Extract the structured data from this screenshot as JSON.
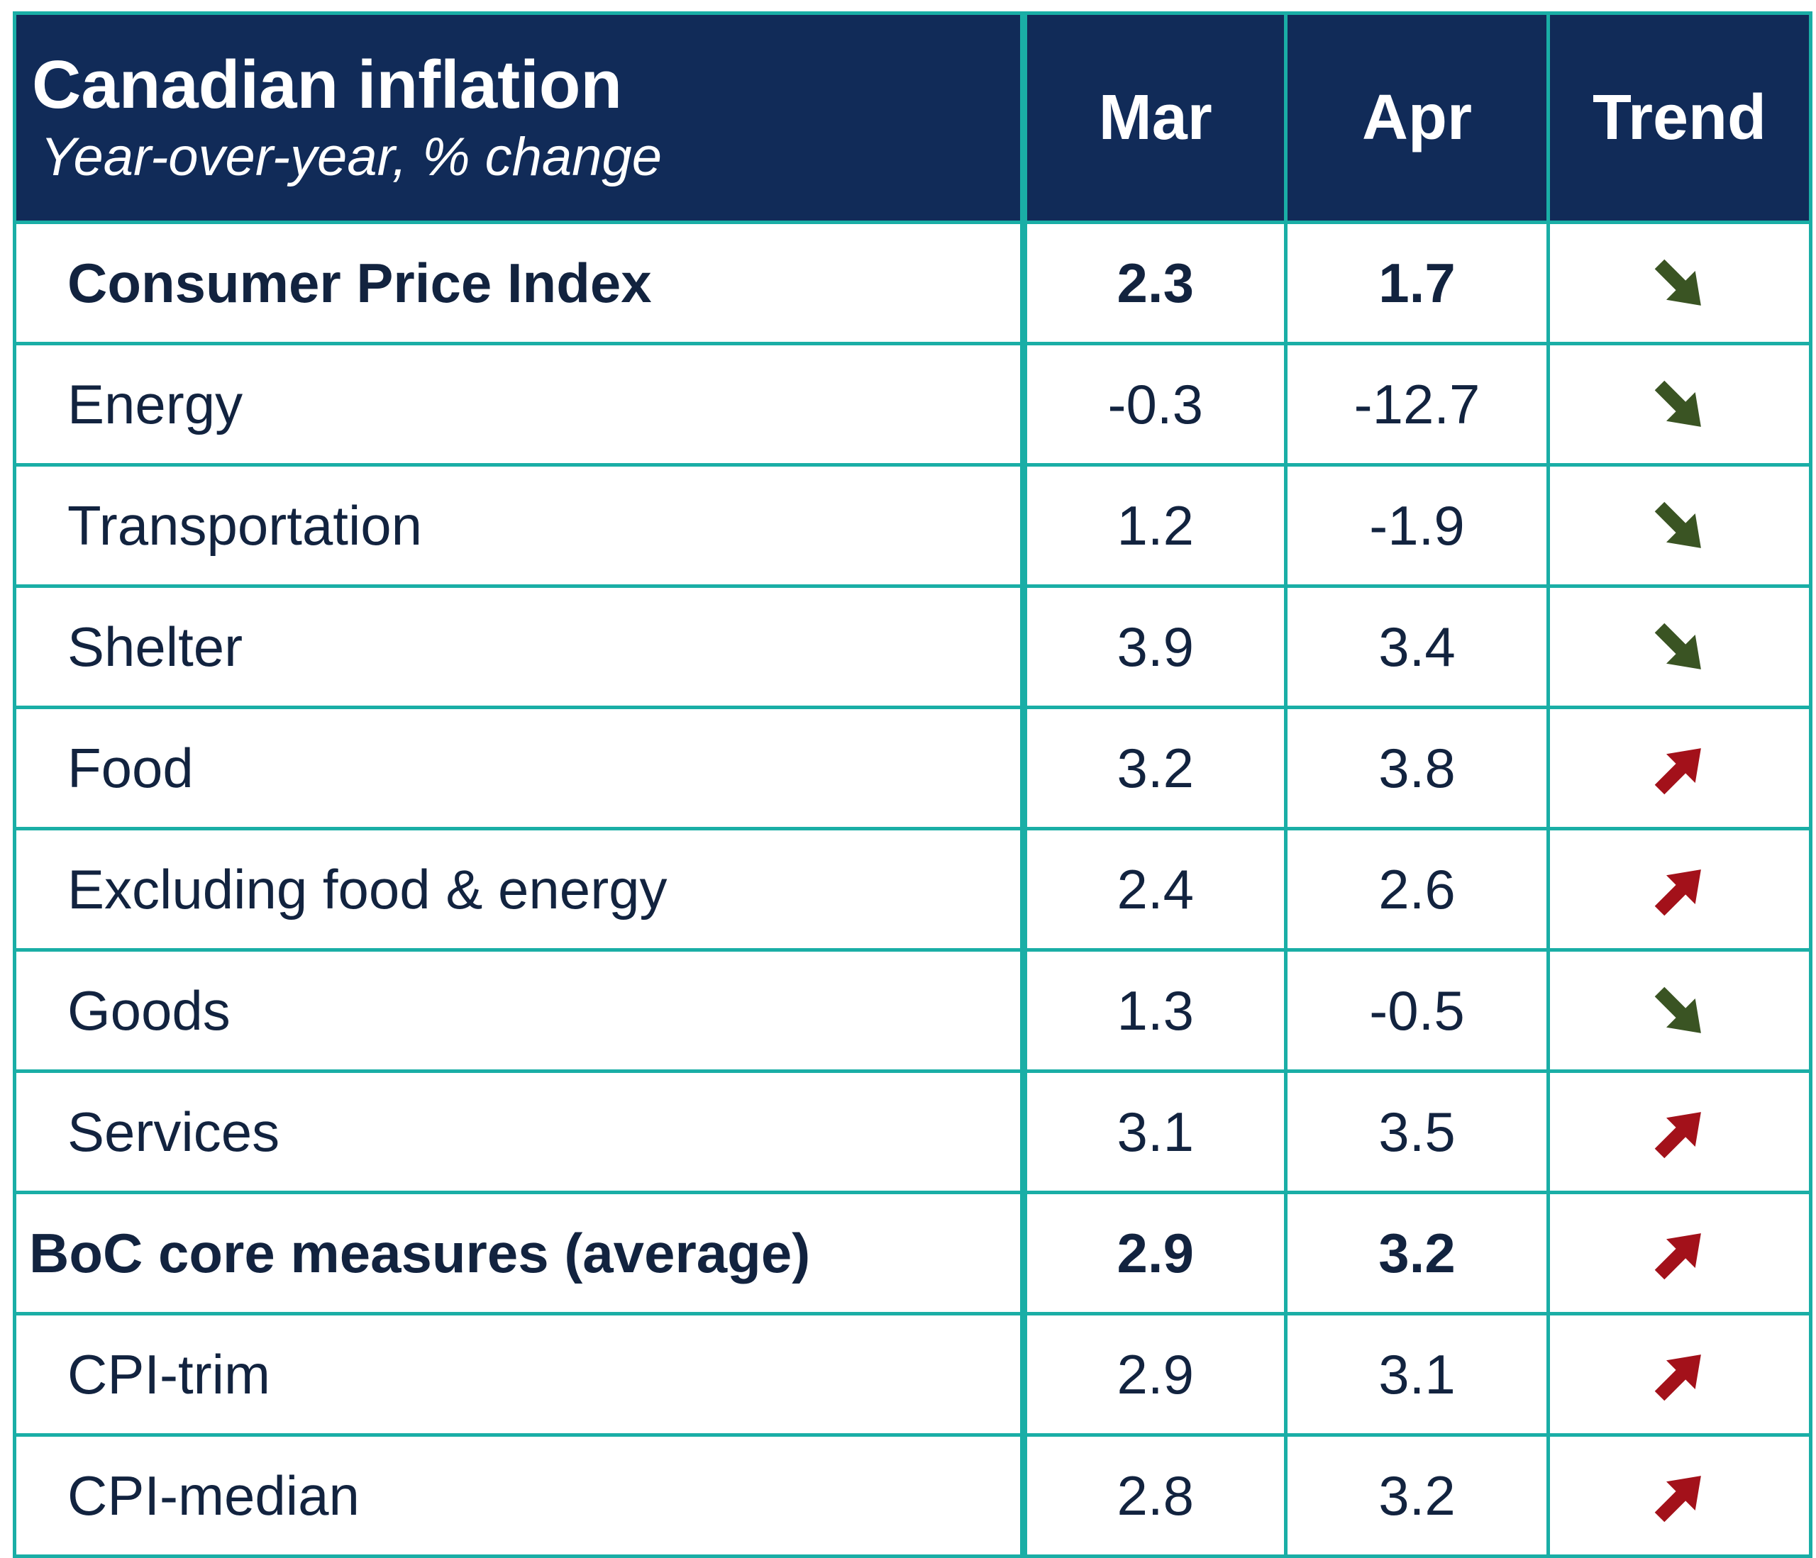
{
  "chart_data": {
    "type": "table",
    "title": "Canadian inflation",
    "subtitle": "Year-over-year, % change",
    "columns": [
      "Mar",
      "Apr",
      "Trend"
    ],
    "colors": {
      "header_bg": "#112b58",
      "grid": "#1aaea6",
      "trend_down": "#3a5423",
      "trend_up": "#a3111a"
    },
    "rows": [
      {
        "label": "Consumer Price Index",
        "mar": "2.3",
        "apr": "1.7",
        "trend": "down",
        "bold": true,
        "indent": true
      },
      {
        "label": "Energy",
        "mar": "-0.3",
        "apr": "-12.7",
        "trend": "down",
        "bold": false,
        "indent": true
      },
      {
        "label": "Transportation",
        "mar": "1.2",
        "apr": "-1.9",
        "trend": "down",
        "bold": false,
        "indent": true
      },
      {
        "label": "Shelter",
        "mar": "3.9",
        "apr": "3.4",
        "trend": "down",
        "bold": false,
        "indent": true
      },
      {
        "label": "Food",
        "mar": "3.2",
        "apr": "3.8",
        "trend": "up",
        "bold": false,
        "indent": true
      },
      {
        "label": "Excluding food & energy",
        "mar": "2.4",
        "apr": "2.6",
        "trend": "up",
        "bold": false,
        "indent": true
      },
      {
        "label": "Goods",
        "mar": "1.3",
        "apr": "-0.5",
        "trend": "down",
        "bold": false,
        "indent": true
      },
      {
        "label": "Services",
        "mar": "3.1",
        "apr": "3.5",
        "trend": "up",
        "bold": false,
        "indent": true
      },
      {
        "label": "BoC core measures (average)",
        "mar": "2.9",
        "apr": "3.2",
        "trend": "up",
        "bold": true,
        "indent": false
      },
      {
        "label": "CPI-trim",
        "mar": "2.9",
        "apr": "3.1",
        "trend": "up",
        "bold": false,
        "indent": true
      },
      {
        "label": "CPI-median",
        "mar": "2.8",
        "apr": "3.2",
        "trend": "up",
        "bold": false,
        "indent": true
      }
    ]
  }
}
